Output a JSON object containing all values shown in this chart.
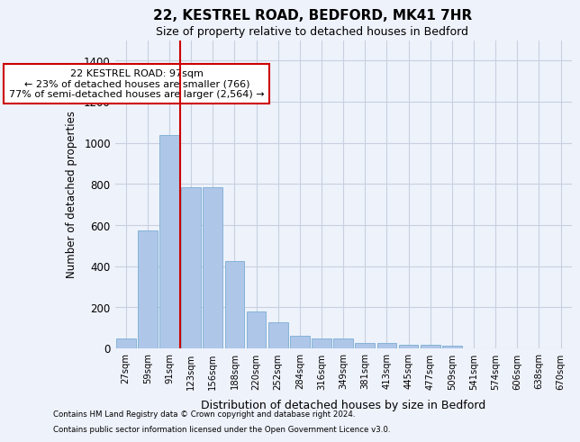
{
  "title_line1": "22, KESTREL ROAD, BEDFORD, MK41 7HR",
  "title_line2": "Size of property relative to detached houses in Bedford",
  "xlabel": "Distribution of detached houses by size in Bedford",
  "ylabel": "Number of detached properties",
  "categories": [
    "27sqm",
    "59sqm",
    "91sqm",
    "123sqm",
    "156sqm",
    "188sqm",
    "220sqm",
    "252sqm",
    "284sqm",
    "316sqm",
    "349sqm",
    "381sqm",
    "413sqm",
    "445sqm",
    "477sqm",
    "509sqm",
    "541sqm",
    "574sqm",
    "606sqm",
    "638sqm",
    "670sqm"
  ],
  "values": [
    47,
    572,
    1040,
    785,
    785,
    425,
    180,
    128,
    63,
    50,
    47,
    28,
    28,
    18,
    18,
    12,
    0,
    0,
    0,
    0,
    0
  ],
  "bar_color": "#aec6e8",
  "bar_edge_color": "#7aadd4",
  "ylim": [
    0,
    1500
  ],
  "yticks": [
    0,
    200,
    400,
    600,
    800,
    1000,
    1200,
    1400
  ],
  "vline_x": 2.5,
  "vline_color": "#cc0000",
  "annotation_text": "22 KESTREL ROAD: 97sqm\n← 23% of detached houses are smaller (766)\n77% of semi-detached houses are larger (2,564) →",
  "footnote1": "Contains HM Land Registry data © Crown copyright and database right 2024.",
  "footnote2": "Contains public sector information licensed under the Open Government Licence v3.0.",
  "background_color": "#eef2fb",
  "plot_bg_color": "#eef2fb",
  "grid_color": "#c8d0e0"
}
